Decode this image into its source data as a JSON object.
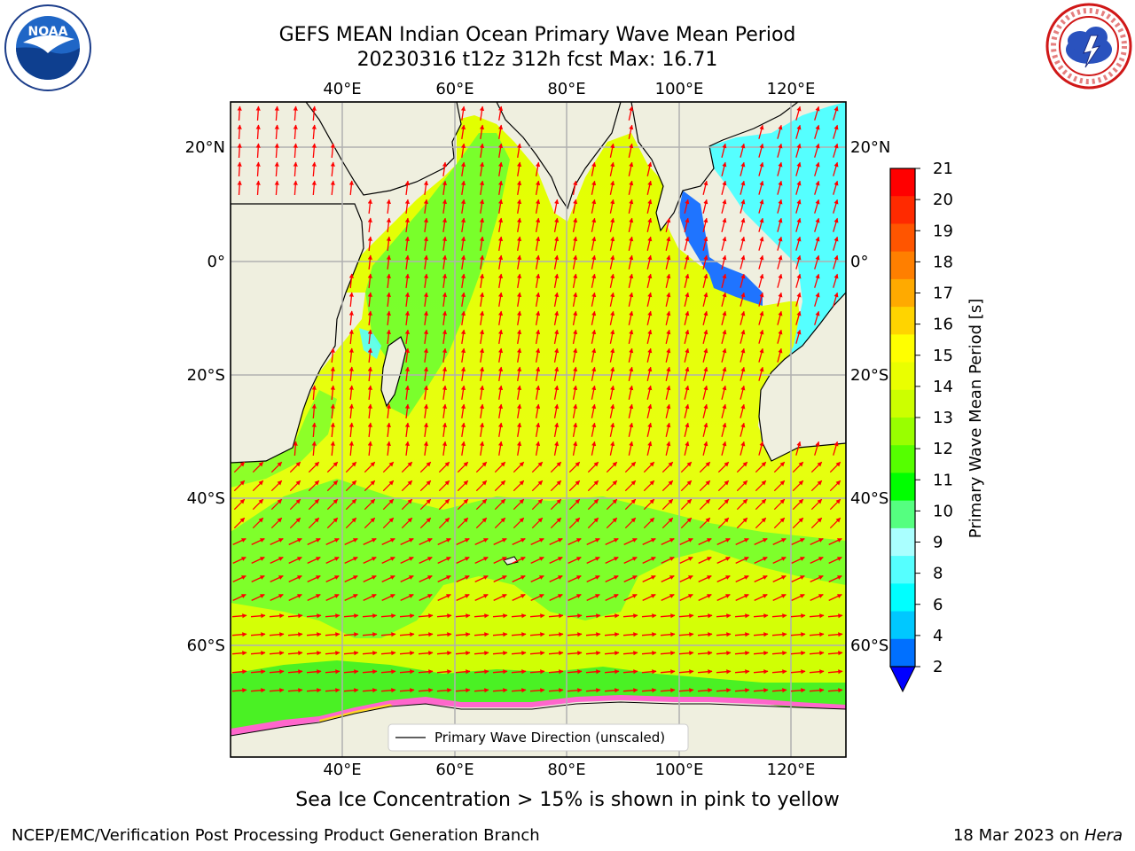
{
  "title_line1": "GEFS MEAN Indian Ocean Primary Wave Mean Period",
  "title_line2": "20230316 t12z 312h fcst   Max: 16.71",
  "logos": {
    "left": "noaa-logo",
    "right": "nws-logo",
    "left_text": "NOAA",
    "right_text": "NATIONAL WEATHER SERVICE"
  },
  "map": {
    "lon_labels": [
      "40°E",
      "60°E",
      "80°E",
      "100°E",
      "120°E"
    ],
    "lat_labels": [
      "20°N",
      "0°",
      "20°S",
      "40°S",
      "60°S"
    ],
    "legend_label": "Primary Wave Direction (unscaled)"
  },
  "colorbar": {
    "label": "Primary Wave Mean Period [s]",
    "ticks": [
      "21",
      "20",
      "19",
      "18",
      "17",
      "16",
      "15",
      "14",
      "13",
      "12",
      "11",
      "10",
      "9",
      "8",
      "6",
      "4",
      "2"
    ],
    "colors": [
      "#ff0000",
      "#ff2a00",
      "#ff5500",
      "#ff7f00",
      "#ffaa00",
      "#ffd400",
      "#ffff00",
      "#eaff00",
      "#ccff00",
      "#99ff00",
      "#55ff00",
      "#00ff00",
      "#55ff80",
      "#aaffff",
      "#55ffff",
      "#00ffff",
      "#00c8ff",
      "#0070ff"
    ],
    "extend_color": "#0000ff"
  },
  "caption": "Sea Ice Concentration > 15% is shown in pink to yellow",
  "footer_left": "NCEP/EMC/Verification Post Processing Product Generation Branch",
  "footer_date": "18 Mar 2023 on ",
  "footer_host": "Hera"
}
